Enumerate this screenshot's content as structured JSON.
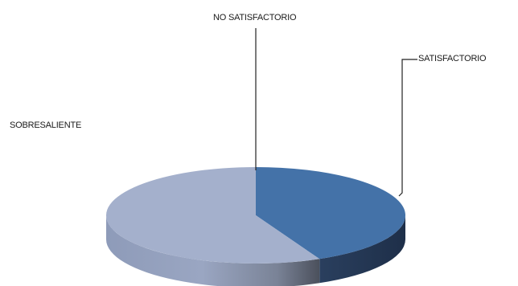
{
  "chart_data": {
    "type": "pie",
    "three_d": true,
    "slices": [
      {
        "label": "SATISFACTORIO",
        "value": 43,
        "color": "#4472a8"
      },
      {
        "label": "SOBRESALIENTE",
        "value": 57,
        "color": "#a4b0cc"
      },
      {
        "label": "NO SATISFACTORIO",
        "value": 0,
        "color": "#2f4f7a"
      }
    ],
    "legend": "none",
    "title": ""
  }
}
